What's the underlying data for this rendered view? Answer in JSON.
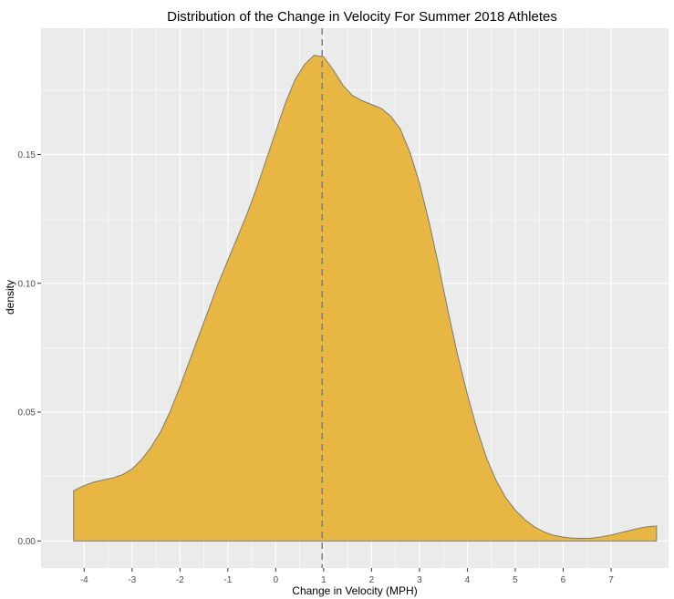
{
  "chart_data": {
    "type": "area",
    "title": "Distribution of the Change in Velocity For Summer 2018 Athletes",
    "xlabel": "Change in Velocity (MPH)",
    "ylabel": "density",
    "xlim": [
      -4.9,
      8.2
    ],
    "ylim": [
      -0.0105,
      0.199
    ],
    "x_ticks": [
      -4,
      -3,
      -2,
      -1,
      0,
      1,
      2,
      3,
      4,
      5,
      6,
      7
    ],
    "y_ticks": [
      0.0,
      0.05,
      0.1,
      0.15
    ],
    "y_tick_labels": [
      "0.00",
      "0.05",
      "0.10",
      "0.15"
    ],
    "grid": true,
    "fill_color": "#E8B43A",
    "line_color": "#7a7a7a",
    "vline": {
      "x": 0.97,
      "color": "#7f7f7f",
      "style": "dashed"
    },
    "series": [
      {
        "x": [
          -4.22,
          -4.0,
          -3.8,
          -3.6,
          -3.4,
          -3.2,
          -3.0,
          -2.8,
          -2.6,
          -2.4,
          -2.2,
          -2.0,
          -1.8,
          -1.6,
          -1.4,
          -1.2,
          -1.0,
          -0.8,
          -0.6,
          -0.4,
          -0.2,
          0.0,
          0.2,
          0.4,
          0.6,
          0.8,
          1.0,
          1.2,
          1.4,
          1.6,
          1.8,
          2.0,
          2.2,
          2.4,
          2.6,
          2.8,
          3.0,
          3.2,
          3.4,
          3.6,
          3.8,
          4.0,
          4.2,
          4.4,
          4.6,
          4.8,
          5.0,
          5.2,
          5.4,
          5.6,
          5.8,
          6.0,
          6.2,
          6.4,
          6.6,
          6.8,
          7.0,
          7.2,
          7.4,
          7.6,
          7.8,
          7.95
        ],
        "values": [
          0.0195,
          0.0215,
          0.0228,
          0.0237,
          0.0245,
          0.0257,
          0.0279,
          0.0316,
          0.0365,
          0.0425,
          0.0505,
          0.0599,
          0.0699,
          0.0799,
          0.0899,
          0.0999,
          0.1089,
          0.1179,
          0.1269,
          0.1369,
          0.1479,
          0.1589,
          0.1699,
          0.1789,
          0.1849,
          0.1885,
          0.1879,
          0.1829,
          0.1769,
          0.1729,
          0.1709,
          0.1694,
          0.1679,
          0.1649,
          0.1599,
          0.1509,
          0.1389,
          0.1239,
          0.1069,
          0.0889,
          0.0719,
          0.0569,
          0.0435,
          0.0322,
          0.0235,
          0.0168,
          0.012,
          0.0083,
          0.0055,
          0.0035,
          0.0022,
          0.0015,
          0.0011,
          0.001,
          0.0011,
          0.0016,
          0.0023,
          0.0032,
          0.0041,
          0.005,
          0.0056,
          0.0058
        ]
      }
    ]
  }
}
